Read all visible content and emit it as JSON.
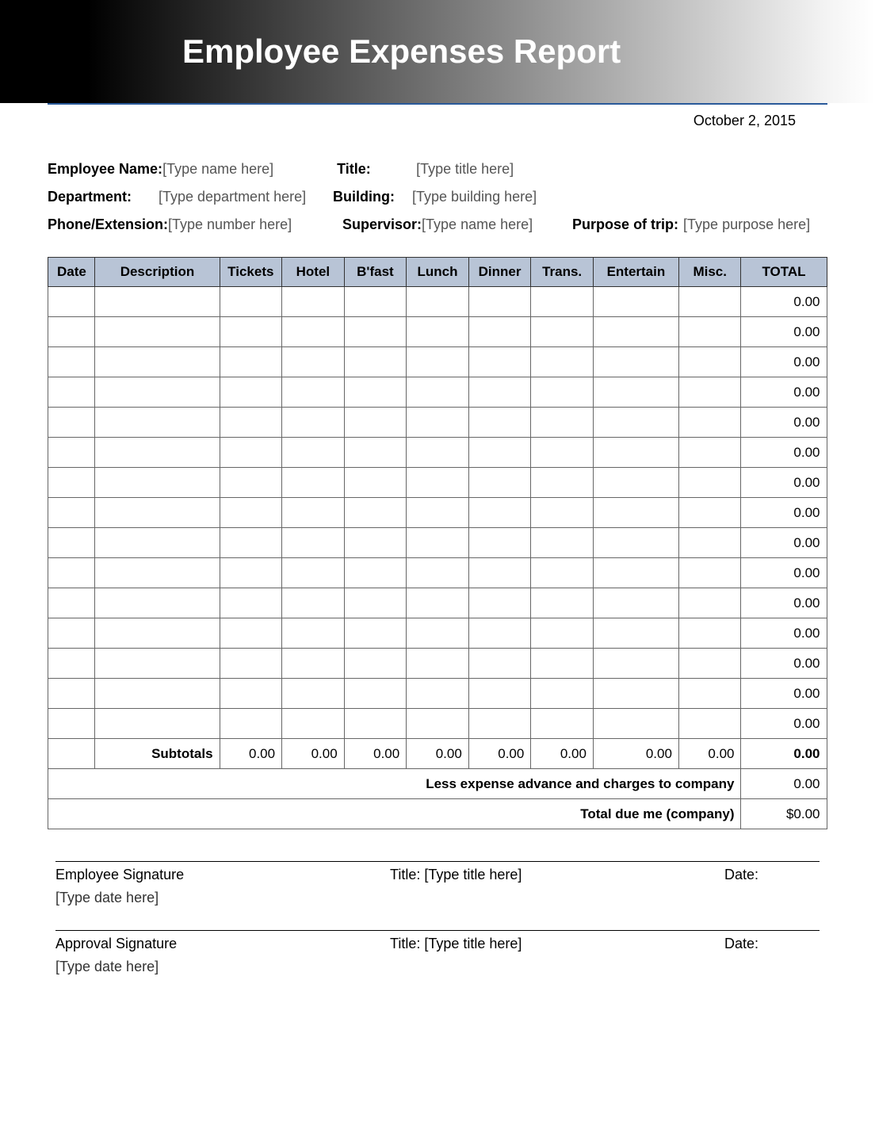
{
  "header": {
    "title": "Employee Expenses Report",
    "banner_gradient_from": "#000000",
    "banner_gradient_to": "#ffffff",
    "rule_color": "#2a5a9a"
  },
  "date": "October 2, 2015",
  "info": {
    "fields": [
      {
        "label": "Employee Name:",
        "value": "[Type name here]"
      },
      {
        "label": "Title:",
        "value": "[Type title here]"
      },
      {
        "label": "Department:",
        "value": "[Type department here]"
      },
      {
        "label": "Building:",
        "value": "[Type building here]"
      },
      {
        "label": "Phone/Extension:",
        "value": "[Type number here]"
      },
      {
        "label": "Supervisor:",
        "value": "[Type name here]"
      },
      {
        "label": "Purpose of trip:",
        "value": "[Type purpose here]"
      }
    ]
  },
  "table": {
    "header_bg": "#b8c4d6",
    "border_color": "#666666",
    "columns": [
      "Date",
      "Description",
      "Tickets",
      "Hotel",
      "B'fast",
      "Lunch",
      "Dinner",
      "Trans.",
      "Entertain",
      "Misc.",
      "TOTAL"
    ],
    "col_widths_pct": [
      6,
      16,
      8,
      8,
      8,
      8,
      8,
      8,
      11,
      8,
      11
    ],
    "data_row_count": 15,
    "row_total_value": "0.00",
    "subtotals": {
      "label": "Subtotals",
      "values": [
        "0.00",
        "0.00",
        "0.00",
        "0.00",
        "0.00",
        "0.00",
        "0.00",
        "0.00"
      ],
      "total": "0.00"
    },
    "less_advance": {
      "label": "Less expense advance and charges to company",
      "value": "0.00"
    },
    "total_due": {
      "label": "Total due me (company)",
      "value": "$0.00"
    }
  },
  "signatures": {
    "employee": {
      "label": "Employee Signature",
      "title_label": "Title:",
      "title_value": "[Type title here]",
      "date_label": "Date:",
      "date_value": "[Type date here]"
    },
    "approval": {
      "label": "Approval Signature",
      "title_label": "Title:",
      "title_value": "[Type title here]",
      "date_label": "Date:",
      "date_value": "[Type date here]"
    }
  }
}
